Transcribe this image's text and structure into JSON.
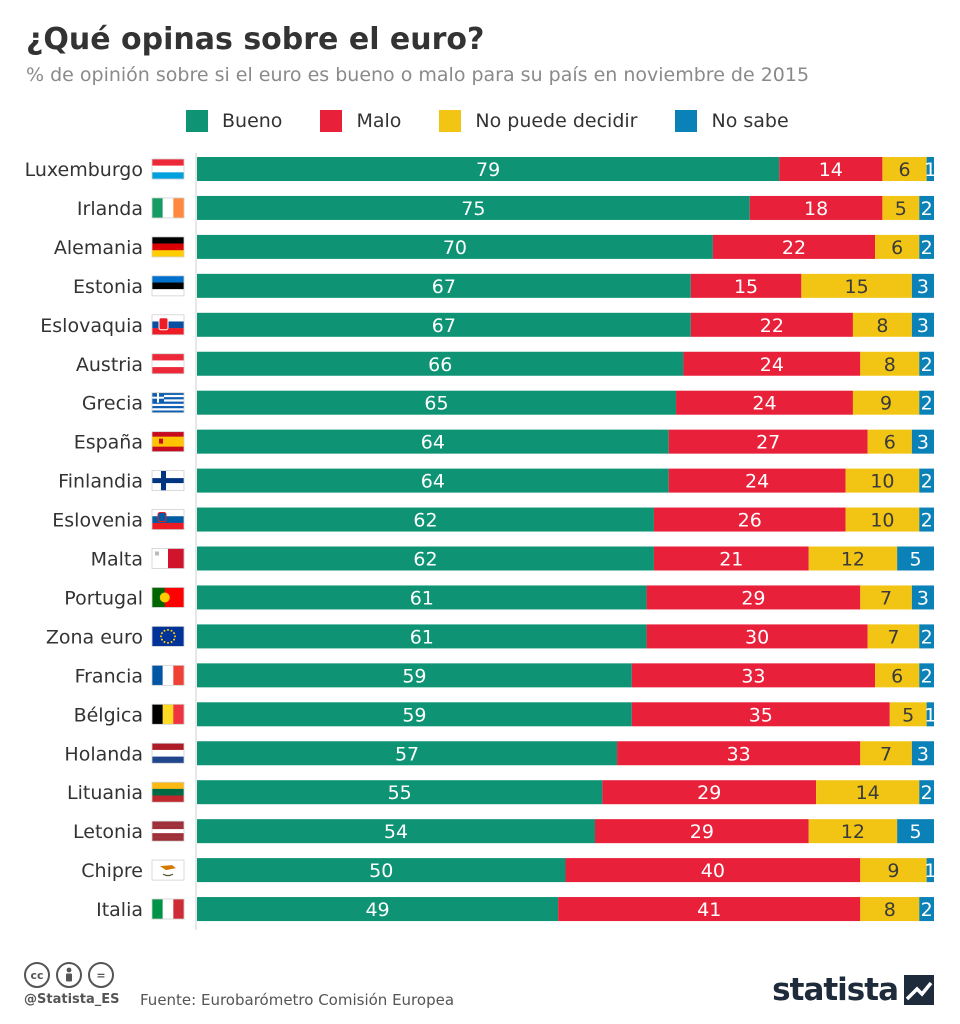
{
  "title": "¿Qué opinas sobre el euro?",
  "subtitle": "% de opinión sobre si el euro es bueno o malo para su país en noviembre de 2015",
  "footer": {
    "handle": "@Statista_ES",
    "source": "Fuente: Eurobarómetro Comisión Europea",
    "brand": "statista",
    "icons": [
      "cc-icon",
      "by-icon",
      "nd-icon"
    ]
  },
  "chart_data": {
    "type": "bar",
    "orientation": "horizontal",
    "stacked": true,
    "title": "¿Qué opinas sobre el euro?",
    "subtitle": "% de opinión sobre si el euro es bueno o malo para su país en noviembre de 2015",
    "xlim": [
      0,
      100
    ],
    "grid": false,
    "legend_position": "top",
    "categories": [
      "Luxemburgo",
      "Irlanda",
      "Alemania",
      "Estonia",
      "Eslovaquia",
      "Austria",
      "Grecia",
      "España",
      "Finlandia",
      "Eslovenia",
      "Malta",
      "Portugal",
      "Zona euro",
      "Francia",
      "Bélgica",
      "Holanda",
      "Lituania",
      "Letonia",
      "Chipre",
      "Italia"
    ],
    "flags": [
      "luxembourg-flag",
      "ireland-flag",
      "germany-flag",
      "estonia-flag",
      "slovakia-flag",
      "austria-flag",
      "greece-flag",
      "spain-flag",
      "finland-flag",
      "slovenia-flag",
      "malta-flag",
      "portugal-flag",
      "eu-flag",
      "france-flag",
      "belgium-flag",
      "netherlands-flag",
      "lithuania-flag",
      "latvia-flag",
      "cyprus-flag",
      "italy-flag"
    ],
    "series": [
      {
        "name": "Bueno",
        "color": "#0e9474",
        "values": [
          79,
          75,
          70,
          67,
          67,
          66,
          65,
          64,
          64,
          62,
          62,
          61,
          61,
          59,
          59,
          57,
          55,
          54,
          50,
          49
        ]
      },
      {
        "name": "Malo",
        "color": "#e8203a",
        "values": [
          14,
          18,
          22,
          15,
          22,
          24,
          24,
          27,
          24,
          26,
          21,
          29,
          30,
          33,
          35,
          33,
          29,
          29,
          40,
          41
        ]
      },
      {
        "name": "No puede decidir",
        "color": "#f2c515",
        "values": [
          6,
          5,
          6,
          15,
          8,
          8,
          9,
          6,
          10,
          10,
          12,
          7,
          7,
          6,
          5,
          7,
          14,
          12,
          9,
          8
        ]
      },
      {
        "name": "No sabe",
        "color": "#0a82b8",
        "values": [
          1,
          2,
          2,
          3,
          3,
          2,
          2,
          3,
          2,
          2,
          5,
          3,
          2,
          2,
          1,
          3,
          2,
          5,
          1,
          2
        ]
      }
    ]
  }
}
